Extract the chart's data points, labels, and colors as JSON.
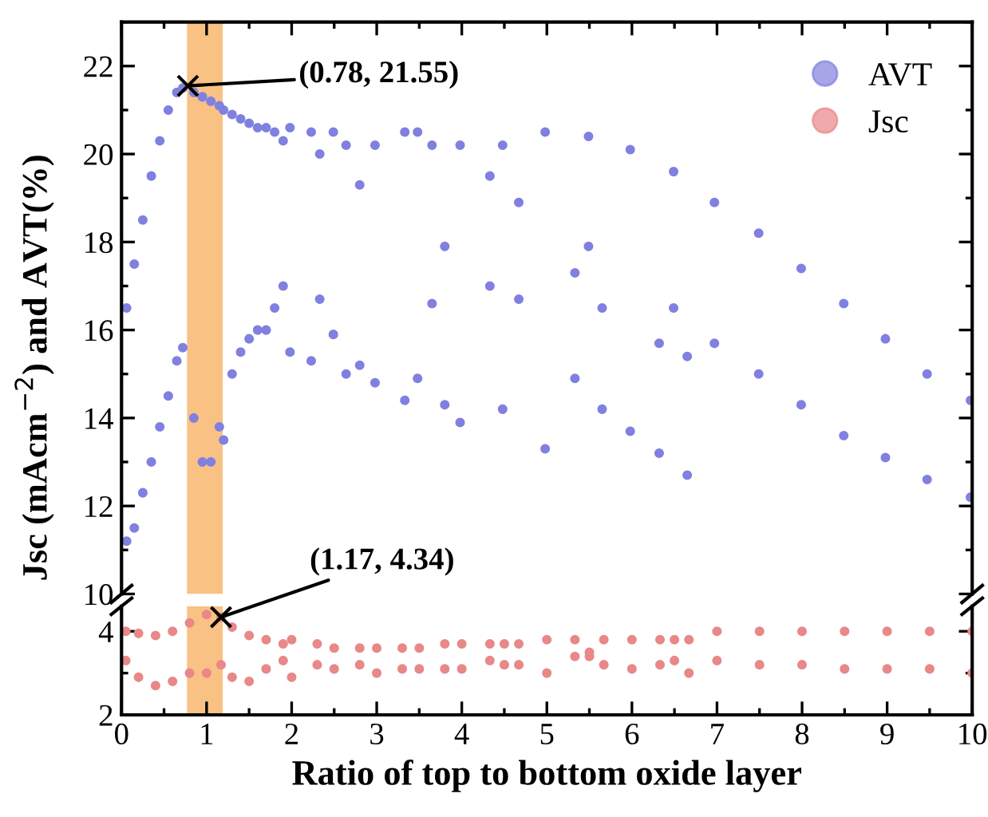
{
  "chart_data": [
    {
      "type": "scatter",
      "ylabel": "Jsc (mAcm$^{−2}$) and AVT(%)",
      "xlim": [
        0,
        10
      ],
      "xticks": [
        0,
        1,
        2,
        3,
        4,
        5,
        6,
        7,
        8,
        9,
        10
      ],
      "ylim": [
        10,
        23
      ],
      "yticks": [
        10,
        12,
        14,
        16,
        18,
        20,
        22
      ],
      "tick_labels": "y",
      "legend": "top right",
      "marker": "circle",
      "series": [
        {
          "name": "AVT",
          "color": "#8080e0",
          "x": [
            0.06,
            0.06,
            0.15,
            0.15,
            0.25,
            0.25,
            0.35,
            0.35,
            0.45,
            0.45,
            0.55,
            0.55,
            0.65,
            0.65,
            0.72,
            0.72,
            0.85,
            0.85,
            0.95,
            0.95,
            1.05,
            1.05,
            1.15,
            1.15,
            1.2,
            1.2,
            1.3,
            1.3,
            1.4,
            1.4,
            1.5,
            1.5,
            1.6,
            1.6,
            1.7,
            1.7,
            1.8,
            1.8,
            1.9,
            1.9,
            1.98,
            1.98,
            2.23,
            2.23,
            2.33,
            2.33,
            2.49,
            2.49,
            2.64,
            2.64,
            2.8,
            2.8,
            2.98,
            2.98,
            3.33,
            3.33,
            3.48,
            3.48,
            3.65,
            3.65,
            3.8,
            3.8,
            3.98,
            3.98,
            4.33,
            4.33,
            4.48,
            4.48,
            4.67,
            4.67,
            4.98,
            4.98,
            5.33,
            5.33,
            5.49,
            5.49,
            5.65,
            5.65,
            5.98,
            5.98,
            6.32,
            6.32,
            6.49,
            6.49,
            6.65,
            6.65,
            6.97,
            6.97,
            7.49,
            7.49,
            7.99,
            7.99,
            8.49,
            8.49,
            8.98,
            8.98,
            9.47,
            9.47,
            9.98,
            9.98
          ],
          "values": [
            16.5,
            11.2,
            17.5,
            11.5,
            18.5,
            12.3,
            19.5,
            13.0,
            20.3,
            13.8,
            21.0,
            14.5,
            21.4,
            15.3,
            21.5,
            15.6,
            21.4,
            14.0,
            21.3,
            13.0,
            21.2,
            13.0,
            21.1,
            13.8,
            21.0,
            13.5,
            20.9,
            15.0,
            20.8,
            15.5,
            20.7,
            15.8,
            20.6,
            16.0,
            20.6,
            16.0,
            20.5,
            16.5,
            20.3,
            17.0,
            20.6,
            15.5,
            20.5,
            15.3,
            20.0,
            16.7,
            20.5,
            15.9,
            20.2,
            15.0,
            19.3,
            15.2,
            20.2,
            14.8,
            20.5,
            14.4,
            20.5,
            14.9,
            20.2,
            16.6,
            17.9,
            14.3,
            20.2,
            13.9,
            19.5,
            17.0,
            20.2,
            14.2,
            18.9,
            16.7,
            20.5,
            13.3,
            17.3,
            14.9,
            20.4,
            17.9,
            16.5,
            14.2,
            20.1,
            13.7,
            15.7,
            13.2,
            19.6,
            16.5,
            15.4,
            12.7,
            18.9,
            15.7,
            18.2,
            15.0,
            17.4,
            14.3,
            16.6,
            13.6,
            15.8,
            13.1,
            15.0,
            12.6,
            14.4,
            12.2
          ]
        }
      ],
      "bands": [
        {
          "axis": "x",
          "from": 0.77,
          "to": 1.19,
          "color": "#f9c184"
        }
      ],
      "annotations": [
        {
          "text": "(0.78, 21.55)",
          "x": 0.78,
          "y": 21.55
        }
      ]
    },
    {
      "type": "scatter",
      "xlabel": "Ratio of top to bottom oxide layer",
      "xlim": [
        0,
        10
      ],
      "xticks": [
        0,
        1,
        2,
        3,
        4,
        5,
        6,
        7,
        8,
        9,
        10
      ],
      "ylim": [
        2,
        4.6
      ],
      "yticks": [
        2,
        4
      ],
      "marker": "circle",
      "series": [
        {
          "name": "Jsc",
          "color": "#e88888",
          "x": [
            0.05,
            0.05,
            0.2,
            0.2,
            0.4,
            0.4,
            0.6,
            0.6,
            0.8,
            0.8,
            1.0,
            1.0,
            1.17,
            1.17,
            1.3,
            1.3,
            1.5,
            1.5,
            1.7,
            1.7,
            1.9,
            1.9,
            2.0,
            2.0,
            2.3,
            2.3,
            2.5,
            2.5,
            2.8,
            2.8,
            3.0,
            3.0,
            3.3,
            3.3,
            3.5,
            3.5,
            3.8,
            3.8,
            4.0,
            4.0,
            4.33,
            4.33,
            4.5,
            4.5,
            4.67,
            4.67,
            5.0,
            5.0,
            5.33,
            5.33,
            5.5,
            5.5,
            5.67,
            5.67,
            6.0,
            6.0,
            6.33,
            6.33,
            6.5,
            6.5,
            6.67,
            6.67,
            7.0,
            7.0,
            7.5,
            7.5,
            8.0,
            8.0,
            8.5,
            8.5,
            9.0,
            9.0,
            9.5,
            9.5,
            10.0,
            10.0
          ],
          "values": [
            4.0,
            3.3,
            3.95,
            2.9,
            3.9,
            2.7,
            4.0,
            2.8,
            4.2,
            3.0,
            4.4,
            3.0,
            4.34,
            3.2,
            4.1,
            2.9,
            3.9,
            2.8,
            3.8,
            3.1,
            3.7,
            3.3,
            3.8,
            2.9,
            3.7,
            3.2,
            3.6,
            3.1,
            3.6,
            3.2,
            3.6,
            3.0,
            3.6,
            3.1,
            3.6,
            3.1,
            3.7,
            3.1,
            3.7,
            3.1,
            3.7,
            3.3,
            3.7,
            3.2,
            3.7,
            3.2,
            3.8,
            3.0,
            3.8,
            3.4,
            3.5,
            3.4,
            3.8,
            3.2,
            3.8,
            3.1,
            3.8,
            3.2,
            3.8,
            3.3,
            3.8,
            3.0,
            4.0,
            3.3,
            4.0,
            3.2,
            4.0,
            3.2,
            4.0,
            3.1,
            4.0,
            3.1,
            4.0,
            3.1,
            4.0,
            3.0
          ]
        }
      ],
      "bands": [
        {
          "axis": "x",
          "from": 0.77,
          "to": 1.19,
          "color": "#f9c184"
        }
      ],
      "annotations": [
        {
          "text": "(1.17, 4.34)",
          "x": 1.17,
          "y": 4.34
        }
      ]
    }
  ]
}
